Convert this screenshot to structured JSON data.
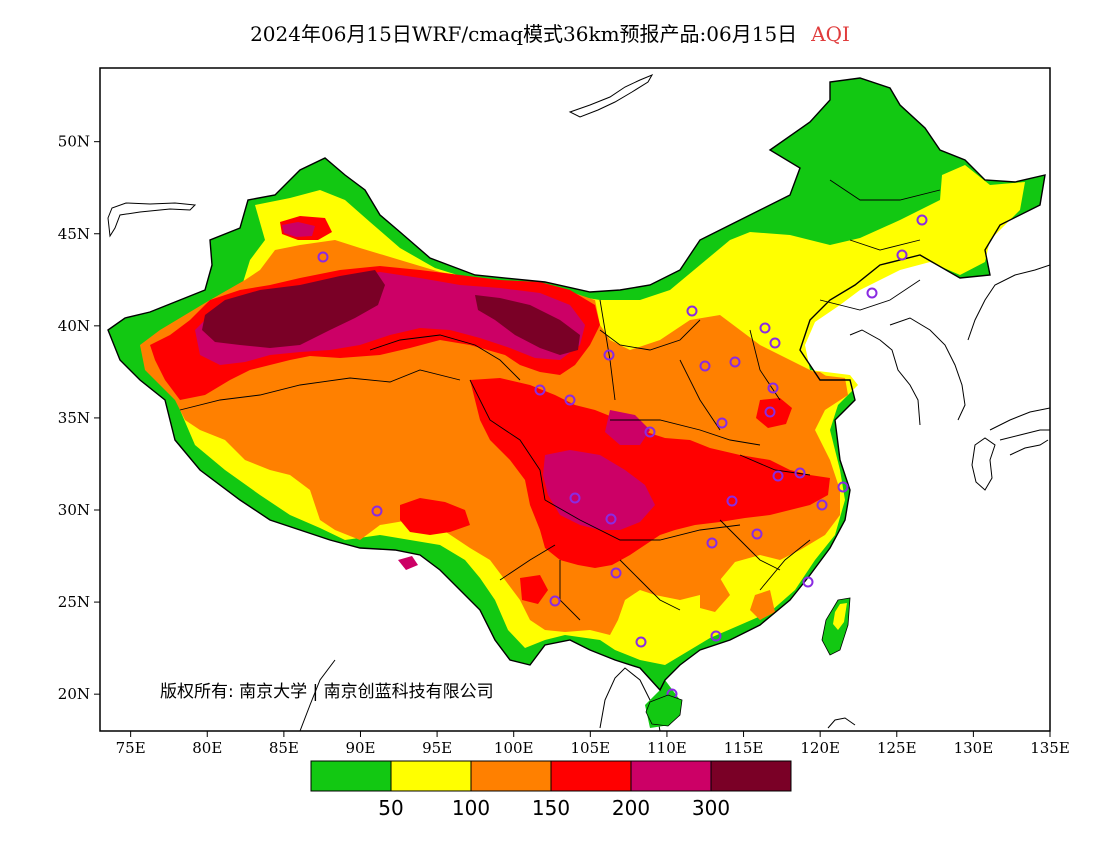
{
  "title": {
    "main": "2024年06月15日WRF/cmaq模式36km预报产品:06月15日",
    "product": "AQI",
    "product_color": "#e03c3c"
  },
  "axes": {
    "x_ticks": [
      "75E",
      "80E",
      "85E",
      "90E",
      "95E",
      "100E",
      "105E",
      "110E",
      "115E",
      "120E",
      "125E",
      "130E",
      "135E"
    ],
    "y_ticks": [
      "20N",
      "25N",
      "30N",
      "35N",
      "40N",
      "45N",
      "50N"
    ],
    "lon_range": [
      73,
      135
    ],
    "lat_range": [
      18,
      54
    ]
  },
  "copyright": "版权所有: 南京大学 | 南京创蓝科技有限公司",
  "legend": {
    "colors": [
      "#12c812",
      "#ffff00",
      "#ff8000",
      "#ff0000",
      "#cc0066",
      "#7a0026"
    ],
    "labels": [
      "50",
      "100",
      "150",
      "200",
      "300"
    ]
  },
  "colors": {
    "land_bg": "#ffffff",
    "border": "#000000",
    "station_marker": "#8a2be2"
  }
}
